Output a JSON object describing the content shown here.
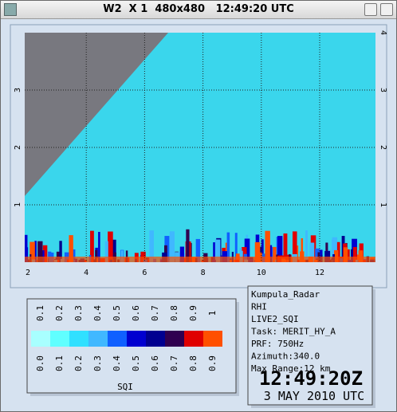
{
  "window": {
    "title": "W2  X 1  480x480   12:49:20 UTC"
  },
  "plot": {
    "xticks": [
      "2",
      "4",
      "6",
      "8",
      "10",
      "12"
    ],
    "yticks_left": [
      "1",
      "2",
      "3"
    ],
    "yticks_right": [
      "1",
      "2",
      "3",
      "4"
    ]
  },
  "legend": {
    "upper_labels": [
      "0.1",
      "0.2",
      "0.3",
      "0.4",
      "0.5",
      "0.6",
      "0.7",
      "0.8",
      "0.9",
      "1"
    ],
    "lower_labels": [
      "0.0",
      "0.1",
      "0.2",
      "0.3",
      "0.4",
      "0.5",
      "0.6",
      "0.7",
      "0.8",
      "0.9"
    ],
    "colors": [
      "#a8ffff",
      "#60ffff",
      "#30e0ff",
      "#40b8ff",
      "#1060ff",
      "#0000d0",
      "#000090",
      "#300050",
      "#e00000",
      "#ff5000"
    ],
    "title": "SQI"
  },
  "info": {
    "lines": [
      "Kumpula_Radar",
      "RHI",
      "LIVE2_SQI",
      "Task: MERIT_HY_A",
      "PRF: 750Hz",
      "Azimuth:340.0",
      "Max Range:12 km"
    ],
    "time": "12:49:20Z",
    "date": "3 MAY 2010 UTC"
  }
}
